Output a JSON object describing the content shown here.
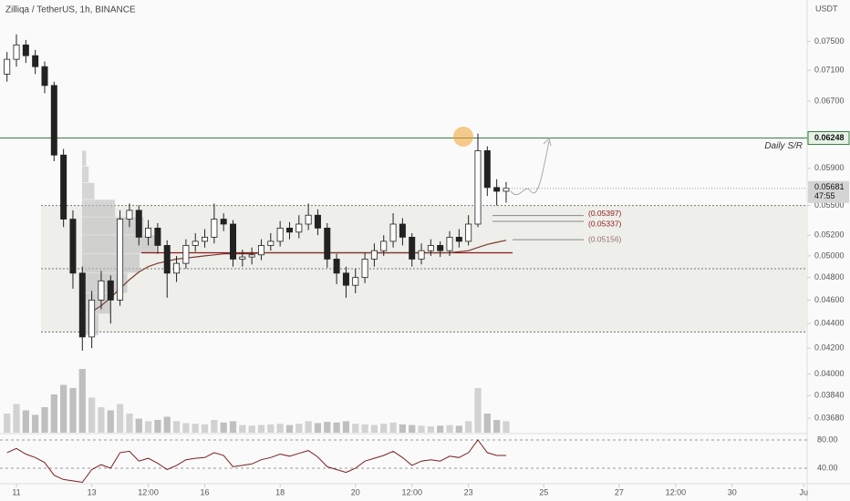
{
  "chart_data": {
    "type": "candlestick",
    "title": "Zilliqa / TetherUS, 1h, BINANCE",
    "currency": "USDT",
    "log_scale": true,
    "up_color": "#ffffff",
    "down_color": "#222222",
    "x": [
      10.75,
      11,
      11.25,
      11.5,
      11.75,
      12,
      12.25,
      12.5,
      12.75,
      13,
      13.25,
      13.5,
      13.75,
      14,
      14.25,
      14.5,
      14.75,
      15,
      15.25,
      15.5,
      15.75,
      16,
      16.25,
      16.5,
      16.75,
      17,
      17.25,
      17.5,
      17.75,
      18,
      18.25,
      18.5,
      18.75,
      19,
      19.25,
      19.5,
      19.75,
      20,
      20.25,
      20.5,
      20.75,
      21,
      21.25,
      21.5,
      21.75,
      22,
      22.25,
      22.5,
      22.75,
      23,
      23.25,
      23.5,
      23.75,
      24
    ],
    "open": [
      0.0705,
      0.0725,
      0.0745,
      0.073,
      0.0715,
      0.069,
      0.0605,
      0.0536,
      0.0484,
      0.0429,
      0.046,
      0.0477,
      0.046,
      0.0536,
      0.0545,
      0.0518,
      0.0527,
      0.051,
      0.0484,
      0.0493,
      0.051,
      0.0514,
      0.0518,
      0.0536,
      0.0531,
      0.0497,
      0.0499,
      0.0501,
      0.051,
      0.0514,
      0.0527,
      0.0523,
      0.0531,
      0.054,
      0.0527,
      0.0497,
      0.0484,
      0.0473,
      0.048,
      0.0497,
      0.0505,
      0.0514,
      0.0531,
      0.0518,
      0.0497,
      0.0505,
      0.051,
      0.0505,
      0.0518,
      0.0514,
      0.0531,
      0.061,
      0.0569,
      0.0565
    ],
    "high": [
      0.0735,
      0.076,
      0.0752,
      0.0738,
      0.0722,
      0.0695,
      0.0612,
      0.0545,
      0.049,
      0.0468,
      0.0486,
      0.0482,
      0.0545,
      0.0552,
      0.055,
      0.0535,
      0.0532,
      0.0515,
      0.05,
      0.0516,
      0.0522,
      0.0526,
      0.0552,
      0.0542,
      0.0535,
      0.0506,
      0.0508,
      0.0516,
      0.0522,
      0.0534,
      0.0533,
      0.054,
      0.0552,
      0.0546,
      0.0532,
      0.0502,
      0.049,
      0.0488,
      0.0503,
      0.0512,
      0.052,
      0.0542,
      0.0537,
      0.0522,
      0.0512,
      0.0516,
      0.0514,
      0.0524,
      0.0526,
      0.054,
      0.063,
      0.0615,
      0.0578,
      0.0575
    ],
    "low": [
      0.0695,
      0.0715,
      0.072,
      0.0705,
      0.068,
      0.0598,
      0.0528,
      0.047,
      0.0418,
      0.042,
      0.0452,
      0.044,
      0.0455,
      0.0528,
      0.051,
      0.051,
      0.0502,
      0.0462,
      0.0476,
      0.0488,
      0.0504,
      0.0508,
      0.0512,
      0.0524,
      0.049,
      0.049,
      0.0492,
      0.0496,
      0.0505,
      0.0509,
      0.0516,
      0.0517,
      0.0525,
      0.052,
      0.0489,
      0.0474,
      0.0462,
      0.0466,
      0.0475,
      0.049,
      0.05,
      0.0508,
      0.051,
      0.049,
      0.0492,
      0.05,
      0.0499,
      0.05,
      0.0508,
      0.051,
      0.0528,
      0.056,
      0.055,
      0.0553
    ],
    "close": [
      0.0725,
      0.0745,
      0.073,
      0.0715,
      0.069,
      0.0605,
      0.0536,
      0.0484,
      0.0429,
      0.046,
      0.0477,
      0.046,
      0.0536,
      0.0545,
      0.0518,
      0.0527,
      0.051,
      0.0484,
      0.0493,
      0.051,
      0.0514,
      0.0518,
      0.0536,
      0.0531,
      0.0497,
      0.0499,
      0.0501,
      0.051,
      0.0514,
      0.0527,
      0.0523,
      0.0531,
      0.054,
      0.0527,
      0.0497,
      0.0484,
      0.0473,
      0.048,
      0.0497,
      0.0505,
      0.0514,
      0.0531,
      0.0518,
      0.0497,
      0.0505,
      0.051,
      0.0505,
      0.0518,
      0.0514,
      0.0531,
      0.061,
      0.0569,
      0.0565,
      0.05681
    ],
    "ma": {
      "color": "#7a3b2e",
      "values": [
        null,
        null,
        null,
        null,
        null,
        null,
        null,
        null,
        null,
        0.045,
        0.0455,
        0.0462,
        0.047,
        0.0478,
        0.0485,
        0.049,
        0.0493,
        0.0495,
        0.0497,
        0.0498,
        0.0499,
        0.05,
        0.0501,
        0.0502,
        0.0502,
        0.0502,
        0.0502,
        0.0503,
        0.0503,
        0.0503,
        0.0503,
        0.0503,
        0.0503,
        0.0503,
        0.0503,
        0.0503,
        0.0503,
        0.0503,
        0.0503,
        0.0503,
        0.0503,
        0.0503,
        0.0503,
        0.0503,
        0.0503,
        0.0503,
        0.0503,
        0.0503,
        0.0504,
        0.0505,
        0.0508,
        0.0511,
        0.0513,
        0.0515
      ]
    },
    "ylim": [
      0.0358,
      0.0811
    ],
    "yticks": [
      {
        "value": 0.075,
        "label": "0.07500"
      },
      {
        "value": 0.071,
        "label": "0.07100"
      },
      {
        "value": 0.067,
        "label": "0.06700"
      },
      {
        "value": 0.059,
        "label": "0.05900"
      },
      {
        "value": 0.055,
        "label": "0.05500"
      },
      {
        "value": 0.052,
        "label": "0.05200"
      },
      {
        "value": 0.05,
        "label": "0.05000"
      },
      {
        "value": 0.048,
        "label": "0.04800"
      },
      {
        "value": 0.046,
        "label": "0.04600"
      },
      {
        "value": 0.044,
        "label": "0.04400"
      },
      {
        "value": 0.042,
        "label": "0.04200"
      },
      {
        "value": 0.04,
        "label": "0.04000"
      },
      {
        "value": 0.0384,
        "label": "0.03840"
      },
      {
        "value": 0.0368,
        "label": "0.03680"
      }
    ],
    "xlim": [
      10.564,
      31.99
    ],
    "xticks": [
      {
        "value": 11,
        "label": "11"
      },
      {
        "value": 13,
        "label": "13"
      },
      {
        "value": 14.5,
        "label": "12:00"
      },
      {
        "value": 16,
        "label": "16"
      },
      {
        "value": 18,
        "label": "18"
      },
      {
        "value": 20,
        "label": "20"
      },
      {
        "value": 21.5,
        "label": "12:00"
      },
      {
        "value": 23,
        "label": "23"
      },
      {
        "value": 25,
        "label": "25"
      },
      {
        "value": 27,
        "label": "27"
      },
      {
        "value": 28.5,
        "label": "12:00"
      },
      {
        "value": 30,
        "label": "30"
      },
      {
        "value": 31.9,
        "label": "Ju"
      }
    ],
    "sr_line": {
      "value": 0.06248,
      "label": "0.06248",
      "text": "Daily S/R",
      "color": "#3a7d44"
    },
    "last_price": {
      "value": 0.05681,
      "label": "0.05681",
      "countdown": "47:55"
    },
    "zone": {
      "top": 0.055,
      "bottom": 0.0433,
      "mid": 0.0488,
      "color": "#eeeeea"
    },
    "poc_line": {
      "value": 0.0503,
      "color": "#8b1a1a"
    },
    "levels": [
      {
        "value": 0.05397,
        "label": "(0.05397)",
        "color": "#8b1a1a"
      },
      {
        "value": 0.05337,
        "label": "(0.05337)",
        "color": "#8b1a1a"
      },
      {
        "value": 0.05156,
        "label": "(0.05156)",
        "color": "#9a7070"
      }
    ],
    "volume_profile": {
      "color": "#bdbdbd",
      "bins": [
        0.043,
        0.0448,
        0.0466,
        0.0484,
        0.0502,
        0.052,
        0.0538,
        0.0556,
        0.0574,
        0.0592,
        0.061
      ],
      "values": [
        20,
        35,
        55,
        70,
        90,
        75,
        40,
        15,
        8,
        5
      ],
      "lim": [
        0,
        100
      ]
    },
    "volume": {
      "color": "#b8b8b8",
      "lim": [
        0,
        100
      ],
      "values": [
        30,
        45,
        35,
        28,
        40,
        60,
        75,
        70,
        100,
        55,
        40,
        35,
        45,
        30,
        22,
        18,
        20,
        25,
        18,
        15,
        14,
        13,
        20,
        16,
        18,
        12,
        11,
        12,
        13,
        14,
        12,
        14,
        18,
        15,
        17,
        16,
        18,
        14,
        13,
        12,
        14,
        16,
        13,
        12,
        11,
        10,
        11,
        12,
        11,
        18,
        70,
        30,
        20,
        18
      ]
    },
    "rsi": {
      "color": "#7b1f1f",
      "ylim": [
        19.3,
        86.4
      ],
      "yticks": [
        {
          "value": 80,
          "label": "80.00"
        },
        {
          "value": 40,
          "label": "40.00"
        }
      ],
      "values": [
        62,
        68,
        60,
        55,
        48,
        30,
        24,
        22,
        20,
        38,
        45,
        40,
        62,
        64,
        50,
        54,
        47,
        38,
        44,
        52,
        54,
        55,
        62,
        58,
        42,
        44,
        46,
        52,
        55,
        60,
        57,
        61,
        65,
        56,
        42,
        38,
        34,
        40,
        50,
        54,
        58,
        64,
        55,
        44,
        50,
        52,
        50,
        57,
        55,
        62,
        80,
        62,
        58,
        58
      ]
    }
  }
}
